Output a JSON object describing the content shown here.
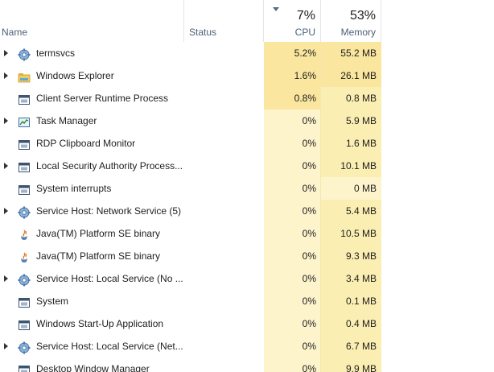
{
  "columns": {
    "name": "Name",
    "status": "Status",
    "cpu_label": "CPU",
    "cpu_total": "7%",
    "memory_label": "Memory",
    "memory_total": "53%"
  },
  "colors": {
    "heat_strong": "#fae69e",
    "heat_medium": "#fbeeb3",
    "heat_light": "#fdf4cc"
  },
  "processes": [
    {
      "name": "termsvcs",
      "icon": "gear-icon",
      "expandable": true,
      "cpu": "5.2%",
      "memory": "55.2 MB",
      "cpu_heat": "strong",
      "mem_heat": "strong"
    },
    {
      "name": "Windows Explorer",
      "icon": "folder-icon",
      "expandable": true,
      "cpu": "1.6%",
      "memory": "26.1 MB",
      "cpu_heat": "strong",
      "mem_heat": "strong"
    },
    {
      "name": "Client Server Runtime Process",
      "icon": "window-icon",
      "expandable": false,
      "cpu": "0.8%",
      "memory": "0.8 MB",
      "cpu_heat": "strong",
      "mem_heat": "medium"
    },
    {
      "name": "Task Manager",
      "icon": "chart-icon",
      "expandable": true,
      "cpu": "0%",
      "memory": "5.9 MB",
      "cpu_heat": "light",
      "mem_heat": "medium"
    },
    {
      "name": "RDP Clipboard Monitor",
      "icon": "window-icon",
      "expandable": false,
      "cpu": "0%",
      "memory": "1.6 MB",
      "cpu_heat": "light",
      "mem_heat": "medium"
    },
    {
      "name": "Local Security Authority Process...",
      "icon": "window-icon",
      "expandable": true,
      "cpu": "0%",
      "memory": "10.1 MB",
      "cpu_heat": "light",
      "mem_heat": "medium"
    },
    {
      "name": "System interrupts",
      "icon": "window-icon",
      "expandable": false,
      "cpu": "0%",
      "memory": "0 MB",
      "cpu_heat": "light",
      "mem_heat": "light"
    },
    {
      "name": "Service Host: Network Service (5)",
      "icon": "gear-icon",
      "expandable": true,
      "cpu": "0%",
      "memory": "5.4 MB",
      "cpu_heat": "light",
      "mem_heat": "medium"
    },
    {
      "name": "Java(TM) Platform SE binary",
      "icon": "java-icon",
      "expandable": false,
      "cpu": "0%",
      "memory": "10.5 MB",
      "cpu_heat": "light",
      "mem_heat": "medium"
    },
    {
      "name": "Java(TM) Platform SE binary",
      "icon": "java-icon",
      "expandable": false,
      "cpu": "0%",
      "memory": "9.3 MB",
      "cpu_heat": "light",
      "mem_heat": "medium"
    },
    {
      "name": "Service Host: Local Service (No ...",
      "icon": "gear-icon",
      "expandable": true,
      "cpu": "0%",
      "memory": "3.4 MB",
      "cpu_heat": "light",
      "mem_heat": "medium"
    },
    {
      "name": "System",
      "icon": "window-icon",
      "expandable": false,
      "cpu": "0%",
      "memory": "0.1 MB",
      "cpu_heat": "light",
      "mem_heat": "medium"
    },
    {
      "name": "Windows Start-Up Application",
      "icon": "window-icon",
      "expandable": false,
      "cpu": "0%",
      "memory": "0.4 MB",
      "cpu_heat": "light",
      "mem_heat": "medium"
    },
    {
      "name": "Service Host: Local Service (Net...",
      "icon": "gear-icon",
      "expandable": true,
      "cpu": "0%",
      "memory": "6.7 MB",
      "cpu_heat": "light",
      "mem_heat": "medium"
    },
    {
      "name": "Desktop Window Manager",
      "icon": "window-icon",
      "expandable": false,
      "cpu": "0%",
      "memory": "9.9 MB",
      "cpu_heat": "light",
      "mem_heat": "medium"
    }
  ]
}
